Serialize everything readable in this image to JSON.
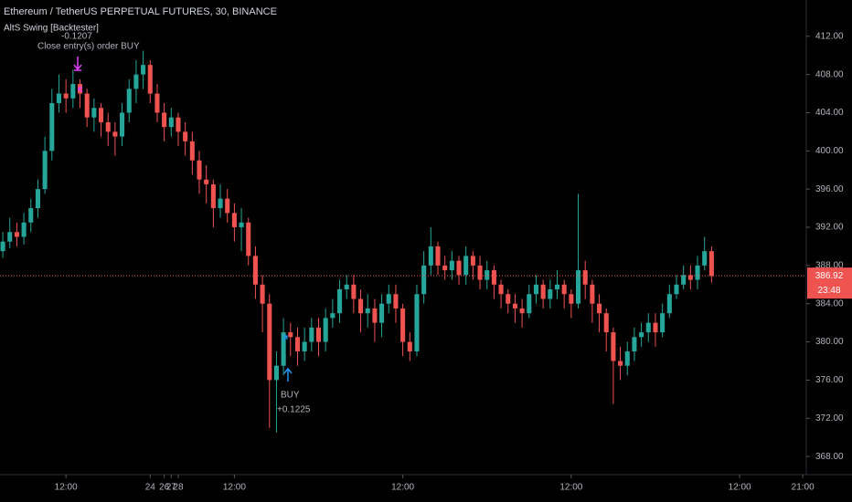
{
  "chart_data": {
    "type": "candlestick",
    "title": "Ethereum / TetherUS PERPETUAL FUTURES, 30, BINANCE",
    "indicator": "AltS Swing [Backtester]",
    "up_color": "#26a69a",
    "down_color": "#ef5350",
    "x": [
      3,
      4,
      5,
      6,
      7,
      8,
      9,
      10,
      11,
      12,
      13,
      14,
      15,
      16,
      17,
      18,
      19,
      20,
      21,
      22,
      23,
      24,
      25,
      26,
      27,
      28,
      29,
      30,
      31,
      32,
      33,
      34,
      35,
      36,
      37,
      38,
      39,
      40,
      41,
      42,
      43,
      44,
      45,
      46,
      47,
      48,
      49,
      50,
      51,
      52,
      53,
      54,
      55,
      56,
      57,
      58,
      59,
      60,
      61,
      62,
      63,
      64,
      65,
      66,
      67,
      68,
      69,
      70,
      71,
      72,
      73,
      74,
      75,
      76,
      77,
      78,
      79,
      80,
      81,
      82,
      83,
      84,
      85,
      86,
      87,
      88,
      89,
      90,
      91,
      92,
      93,
      94,
      95,
      96,
      97,
      98,
      99,
      100,
      101,
      102,
      103,
      104
    ],
    "open": [
      389.5,
      390.5,
      391.5,
      391,
      392.5,
      394,
      396,
      400,
      405,
      406,
      405.5,
      407,
      406,
      403.5,
      404.5,
      403,
      402,
      401.5,
      404,
      406.5,
      408,
      409,
      406,
      404,
      402.5,
      403.5,
      402,
      401,
      399,
      397,
      396.5,
      394,
      395,
      393.5,
      392,
      392.5,
      389,
      386,
      384,
      376,
      377.5,
      381,
      380.5,
      379,
      380,
      381.5,
      380,
      382.5,
      383,
      385.5,
      386,
      384.5,
      383,
      383.5,
      382,
      384,
      385,
      383.5,
      380,
      379,
      385,
      388,
      390,
      388,
      387.5,
      388.5,
      387,
      389,
      388,
      386.5,
      387.5,
      386,
      385,
      384,
      383.5,
      383,
      385,
      386,
      384.5,
      385.5,
      386,
      385,
      384,
      387.5,
      386,
      384,
      383,
      381,
      378,
      377.5,
      379,
      380.5,
      381,
      382,
      381,
      383,
      385,
      386,
      387,
      386.5,
      388,
      389.5
    ],
    "high": [
      391.5,
      393,
      392.5,
      393.5,
      395,
      397,
      401.5,
      406.5,
      408,
      407.5,
      408.5,
      407.5,
      406.5,
      405.5,
      405,
      404,
      403,
      405,
      407.5,
      409.5,
      410.5,
      409.5,
      407,
      405,
      404.5,
      404,
      403,
      402,
      400,
      398.5,
      397,
      396.5,
      396,
      394.5,
      394,
      393,
      390,
      387,
      385,
      379,
      382.5,
      382,
      381.5,
      381.5,
      382.5,
      382.5,
      383.5,
      384.5,
      386.5,
      387,
      387,
      385.5,
      385,
      384.5,
      385,
      386,
      386,
      384,
      381,
      386,
      389.5,
      392,
      390.5,
      389,
      389.5,
      389,
      390,
      389.5,
      389,
      388.5,
      388,
      386.5,
      385.5,
      385,
      384.5,
      386,
      387,
      386.5,
      386.5,
      387.5,
      386.5,
      385.5,
      395.5,
      388.5,
      386.5,
      385,
      383.5,
      381.5,
      379.5,
      380,
      381.5,
      382,
      383,
      383,
      384,
      386,
      387,
      388,
      388,
      389,
      391,
      390
    ],
    "low": [
      388.8,
      389.8,
      390,
      390.2,
      391.5,
      393,
      395.5,
      399,
      404,
      404,
      404.5,
      404.5,
      402.5,
      402,
      401.5,
      400.5,
      399.5,
      400.5,
      403,
      405,
      406.5,
      405,
      403,
      401,
      401.5,
      400.5,
      399.5,
      397.5,
      395.5,
      394.5,
      392,
      393,
      392.5,
      390.5,
      389.5,
      388,
      384.5,
      381,
      371,
      370.5,
      376.5,
      378.5,
      377.5,
      378,
      379,
      378.5,
      379,
      381.5,
      382,
      384.5,
      383,
      381,
      381.5,
      380,
      380.5,
      383,
      382,
      378.5,
      378,
      378.5,
      384,
      387,
      387,
      386.5,
      386.5,
      386,
      386,
      386.5,
      385.5,
      385.5,
      384.5,
      383.5,
      383,
      382,
      381.5,
      382.5,
      384,
      383.5,
      383.5,
      384.5,
      383.5,
      382.5,
      383.5,
      384.5,
      382,
      381,
      379,
      373.5,
      376,
      376.5,
      378,
      379.5,
      380,
      379.5,
      380.5,
      382.5,
      384.5,
      385.5,
      385.5,
      385.5,
      387.5,
      386.2
    ],
    "close": [
      390.5,
      391.5,
      391,
      392.5,
      394,
      396,
      400,
      405,
      406,
      405.5,
      407,
      406,
      403.5,
      404.5,
      403,
      402,
      401.5,
      404,
      406.5,
      408,
      409,
      406,
      404,
      402.5,
      403.5,
      402,
      401,
      399,
      397,
      396.5,
      394,
      395,
      393.5,
      392,
      392.5,
      389,
      386,
      384,
      376,
      377.5,
      381,
      380.5,
      379,
      380,
      381.5,
      380,
      382.5,
      383,
      385.5,
      386,
      384.5,
      383,
      383.5,
      382,
      384,
      385,
      383.5,
      380,
      379,
      385,
      388,
      390,
      388,
      387.5,
      388.5,
      387,
      389,
      388,
      386.5,
      387.5,
      386,
      385,
      384,
      383.5,
      383,
      385,
      386,
      384.5,
      385.5,
      386,
      385,
      384,
      387.5,
      386,
      384,
      383,
      381,
      378,
      377.5,
      379,
      380.5,
      381,
      382,
      381,
      383,
      385,
      386,
      387,
      386.5,
      388,
      389.5,
      386.9
    ],
    "last_price": 386.92,
    "countdown": "23:48",
    "buy_label": "BUY",
    "buy_profit": "+0.1225",
    "exit_label": "Close entry(s) order BUY",
    "exit_profit": "-0.1207",
    "xlim": [
      2.6,
      117.5
    ],
    "ylim": [
      366.1,
      415.8
    ],
    "xticks": [
      {
        "value": 12,
        "label": "12:00"
      },
      24,
      {
        "value": 36,
        "label": "12:00"
      },
      26,
      {
        "value": 60,
        "label": "12:00"
      },
      27,
      {
        "value": 84,
        "label": "12:00"
      },
      28,
      {
        "value": 108,
        "label": "12:00"
      },
      {
        "value": 117,
        "label": "21:00"
      }
    ],
    "yticks": [
      {
        "value": 368,
        "label": "368.00"
      },
      {
        "value": 372,
        "label": "372.00"
      },
      {
        "value": 376,
        "label": "376.00"
      },
      {
        "value": 380,
        "label": "380.00"
      },
      {
        "value": 384,
        "label": "384.00"
      },
      {
        "value": 388,
        "label": "388.00"
      },
      {
        "value": 392,
        "label": "392.00"
      },
      {
        "value": 396,
        "label": "396.00"
      },
      {
        "value": 400,
        "label": "400.00"
      },
      {
        "value": 404,
        "label": "404.00"
      },
      {
        "value": 408,
        "label": "408.00"
      },
      {
        "value": 412,
        "label": "412.00"
      }
    ]
  }
}
